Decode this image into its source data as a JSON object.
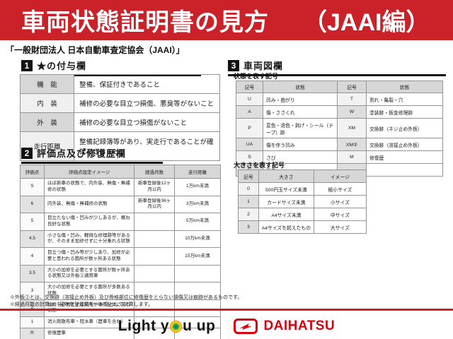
{
  "header": {
    "title": "車両状態証明書の見方",
    "edition": "（JAAI編）",
    "bar_color": "#cb2229"
  },
  "subtitle": "「一般財団法人 日本自動車査定協会（JAAI）」",
  "section1": {
    "number": "1",
    "title": "★の付与欄",
    "rows": [
      [
        "機　能",
        "整備、保証付きであること"
      ],
      [
        "内　装",
        "補修の必要な目立つ損傷、悪臭等がないこと"
      ],
      [
        "外　装",
        "補修の必要な目立つ損傷がないこと"
      ],
      [
        "走行距離",
        "整備記録簿等があり、実走行であることが確認できること"
      ]
    ]
  },
  "section2": {
    "number": "2",
    "title": "評価点及び修復歴欄",
    "headers": [
      "評価点",
      "評価点設定イメージ",
      "経過月数",
      "走行距離"
    ],
    "rows": [
      [
        "S",
        "ほぼ新車の状態で、内外装、無傷・無補修の状態",
        "新車登録後12ヶ月以内",
        "1万km未満"
      ],
      [
        "6",
        "内外装、無傷・無補修の状態",
        "新車登録後36ヶ月以内",
        "3万km未満"
      ],
      [
        "5",
        "目立たない傷・凹みが少しあるが、概ね良好な状態",
        "",
        "5万km未満"
      ],
      [
        "4.5",
        "小さな傷・凹み、軽微な修理跡等があるが、そのまま加修せずに十分乗れる状態",
        "",
        "10万km未満"
      ],
      [
        "4",
        "目立つ傷・凹み等が少しあり、加修が必要と思われる箇所が数ヶ所ある状態",
        "",
        "15万km未満"
      ],
      [
        "3.5",
        "大小の加修を必要とする箇所が数ヶ所ある状態又は外板②適用車",
        "",
        ""
      ],
      [
        "3",
        "大小の加修を必要とする箇所が多数ある状態",
        "",
        ""
      ],
      [
        "2",
        "加修を必要とする箇所が車両全体にある状態",
        "",
        ""
      ],
      [
        "1",
        "消火剤散布車・冠水車（歴車を含む）",
        "",
        ""
      ],
      [
        "R",
        "修復歴車",
        "",
        ""
      ]
    ]
  },
  "section3": {
    "number": "3",
    "title": "車両図欄",
    "symbols_label": "状態を表す記号",
    "symbols_headers": [
      "記号",
      "状態",
      "記号",
      "状態"
    ],
    "symbols_rows": [
      [
        "U",
        "凹み・曲がり",
        "T",
        "割れ・亀裂・穴"
      ],
      [
        "A",
        "傷・ささくれ",
        "W",
        "塗装跡・板金修理跡"
      ],
      [
        "P",
        "変色・退色・剥げ・シール（テープ）跡",
        "XM",
        "交換跡（ネジ止め外板）"
      ],
      [
        "UA",
        "傷を伴う凹み",
        "XM②",
        "交換跡（溶接止め外板）"
      ],
      [
        "S",
        "さび",
        "M",
        "修復歴"
      ],
      [
        "C",
        "腐食",
        "",
        ""
      ]
    ],
    "size_label": "大きさを表す記号",
    "size_headers": [
      "記号",
      "大きさ",
      "イメージ"
    ],
    "size_rows": [
      [
        "0",
        "500円玉サイズ未満",
        "極小サイズ"
      ],
      [
        "1",
        "カードサイズ未満",
        "小サイズ"
      ],
      [
        "2",
        "A4サイズ未満",
        "中サイズ"
      ],
      [
        "3",
        "A4サイズを超えたもの",
        "大サイズ"
      ]
    ]
  },
  "footnotes": [
    "※外板②とは、交換跡（溶接止め外板）及び骨格部位に修復歴をとらない損傷又は痕跡があるものです。",
    "※経過月数の計算は、初年度登録月を一ヶ月として計算します。"
  ],
  "footer": {
    "slogan_left": "Light y",
    "slogan_right": "u up",
    "brand": "DAIHATSU"
  }
}
